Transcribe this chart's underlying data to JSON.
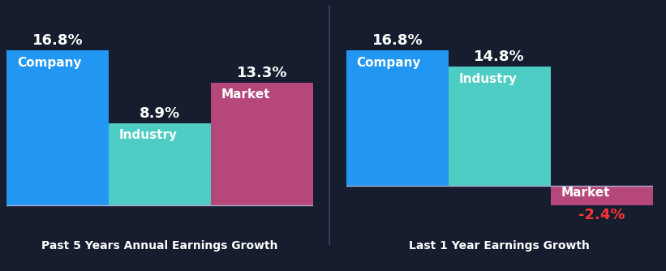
{
  "background_color": "#151d2e",
  "left_chart": {
    "title": "Past 5 Years Annual Earnings Growth",
    "bars": [
      {
        "label": "Company",
        "value": 16.8,
        "color": "#2196f3"
      },
      {
        "label": "Industry",
        "value": 8.9,
        "color": "#4ecdc4"
      },
      {
        "label": "Market",
        "value": 13.3,
        "color": "#b5477a"
      }
    ]
  },
  "right_chart": {
    "title": "Last 1 Year Earnings Growth",
    "bars": [
      {
        "label": "Company",
        "value": 16.8,
        "color": "#2196f3"
      },
      {
        "label": "Industry",
        "value": 14.8,
        "color": "#4ecdc4"
      },
      {
        "label": "Market",
        "value": -2.4,
        "color": "#b5477a"
      }
    ]
  },
  "label_color_positive": "#ffffff",
  "label_color_negative": "#ff3333",
  "bar_label_inside_color": "#ffffff",
  "value_label_fontsize": 13,
  "bar_label_fontsize": 11,
  "title_color": "#ffffff",
  "title_fontsize": 10,
  "divider_color": "#3a4460",
  "baseline_color": "#aaaacc"
}
